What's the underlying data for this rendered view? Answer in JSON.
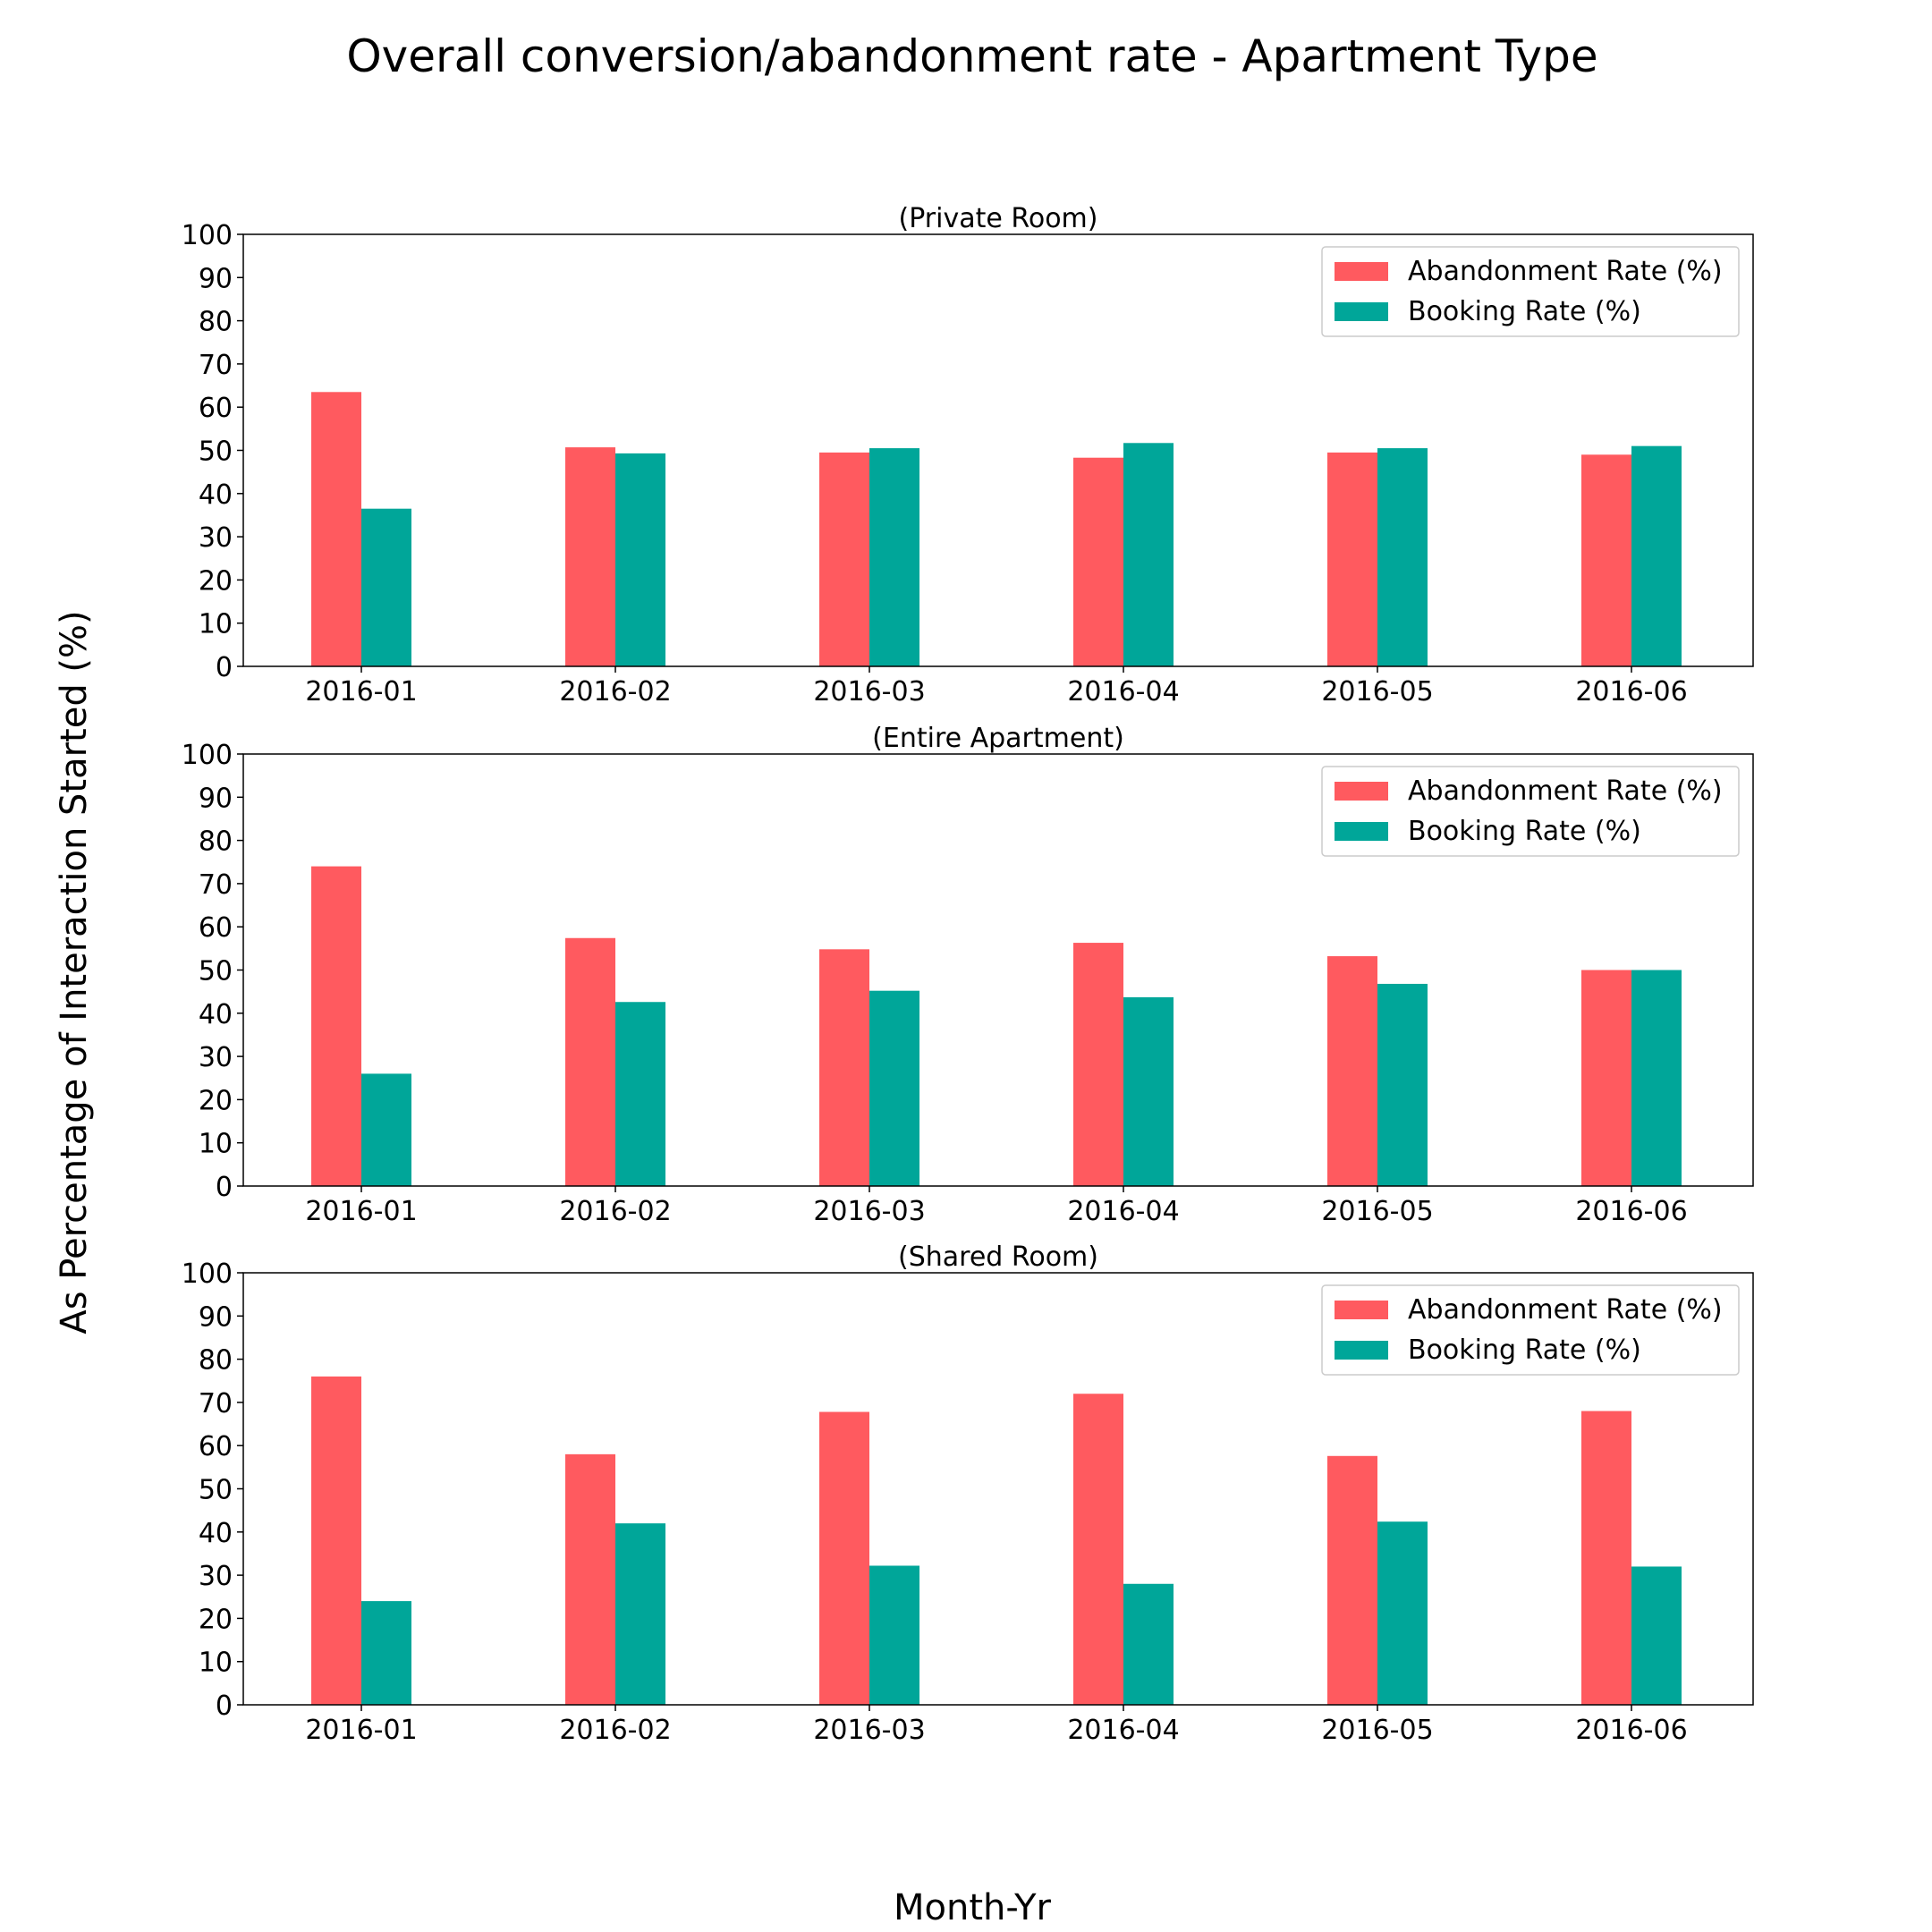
{
  "figure": {
    "title": "Overall conversion/abandonment rate - Apartment Type",
    "xlabel": "Month-Yr",
    "ylabel": "As Percentage of Interaction Started (%)"
  },
  "colors": {
    "abandonment": "#FF5A5F",
    "booking": "#00A699"
  },
  "chart_data": [
    {
      "type": "bar",
      "title": "(Private Room)",
      "categories": [
        "2016-01",
        "2016-02",
        "2016-03",
        "2016-04",
        "2016-05",
        "2016-06"
      ],
      "series": [
        {
          "name": "Abandonment Rate (%)",
          "values": [
            63.5,
            50.7,
            49.5,
            48.3,
            49.5,
            49.0
          ]
        },
        {
          "name": "Booking Rate (%)",
          "values": [
            36.5,
            49.3,
            50.5,
            51.7,
            50.5,
            51.0
          ]
        }
      ],
      "ylim": [
        0,
        100
      ],
      "yticks": [
        0,
        10,
        20,
        30,
        40,
        50,
        60,
        70,
        80,
        90,
        100
      ],
      "legend": "top-right",
      "grid": false
    },
    {
      "type": "bar",
      "title": "(Entire Apartment)",
      "categories": [
        "2016-01",
        "2016-02",
        "2016-03",
        "2016-04",
        "2016-05",
        "2016-06"
      ],
      "series": [
        {
          "name": "Abandonment Rate (%)",
          "values": [
            74.0,
            57.4,
            54.8,
            56.3,
            53.2,
            50.0
          ]
        },
        {
          "name": "Booking Rate (%)",
          "values": [
            26.0,
            42.6,
            45.2,
            43.7,
            46.8,
            50.0
          ]
        }
      ],
      "ylim": [
        0,
        100
      ],
      "yticks": [
        0,
        10,
        20,
        30,
        40,
        50,
        60,
        70,
        80,
        90,
        100
      ],
      "legend": "top-right",
      "grid": false
    },
    {
      "type": "bar",
      "title": "(Shared Room)",
      "categories": [
        "2016-01",
        "2016-02",
        "2016-03",
        "2016-04",
        "2016-05",
        "2016-06"
      ],
      "series": [
        {
          "name": "Abandonment Rate (%)",
          "values": [
            76.0,
            58.0,
            67.8,
            72.0,
            57.6,
            68.0
          ]
        },
        {
          "name": "Booking Rate (%)",
          "values": [
            24.0,
            42.0,
            32.2,
            28.0,
            42.4,
            32.0
          ]
        }
      ],
      "ylim": [
        0,
        100
      ],
      "yticks": [
        0,
        10,
        20,
        30,
        40,
        50,
        60,
        70,
        80,
        90,
        100
      ],
      "legend": "top-right",
      "grid": false
    }
  ]
}
